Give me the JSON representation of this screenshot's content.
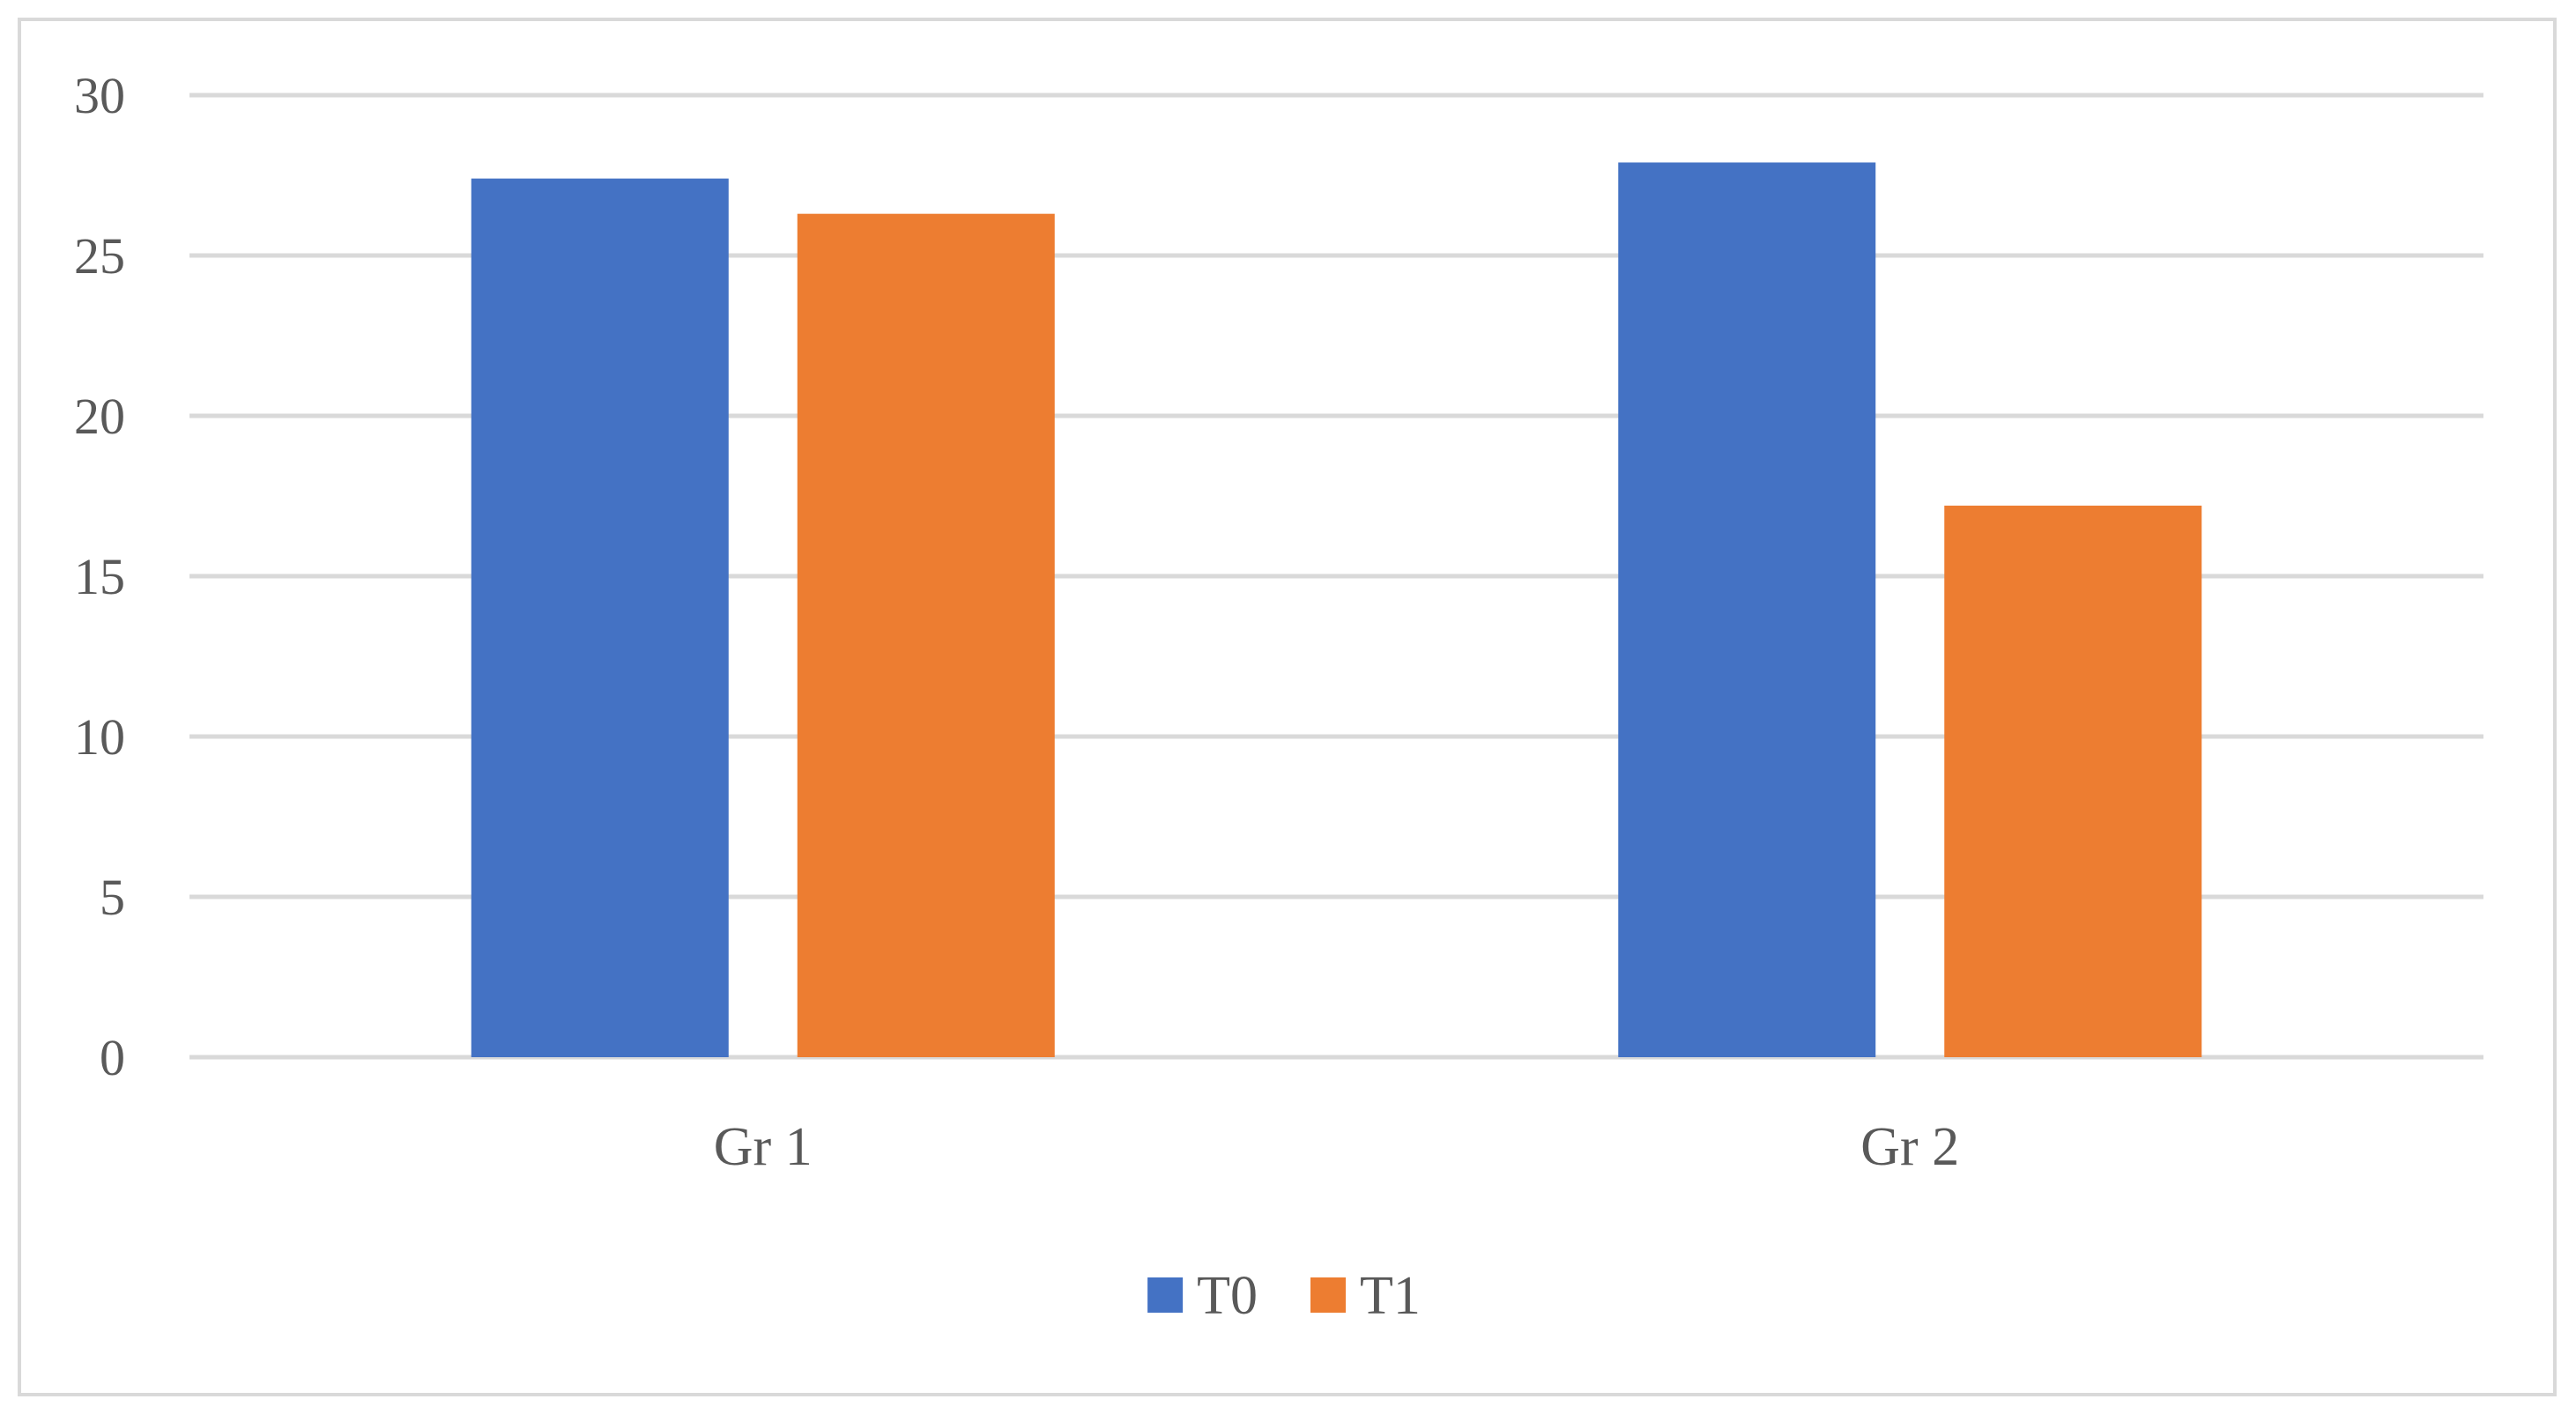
{
  "chart_data": {
    "type": "bar",
    "title": "",
    "xlabel": "",
    "ylabel": "",
    "categories": [
      "Gr 1",
      "Gr 2"
    ],
    "series": [
      {
        "name": "T0",
        "color": "#4472c4",
        "values": [
          27.4,
          27.9
        ]
      },
      {
        "name": "T1",
        "color": "#ed7d31",
        "values": [
          26.3,
          17.2
        ]
      }
    ],
    "ylim": [
      0,
      30
    ],
    "yticks": [
      "0",
      "5",
      "10",
      "15",
      "20",
      "25",
      "30"
    ],
    "grid": true,
    "gridline_color": "#d9d9d9",
    "legend_position": "bottom",
    "text_color": "#595959"
  }
}
